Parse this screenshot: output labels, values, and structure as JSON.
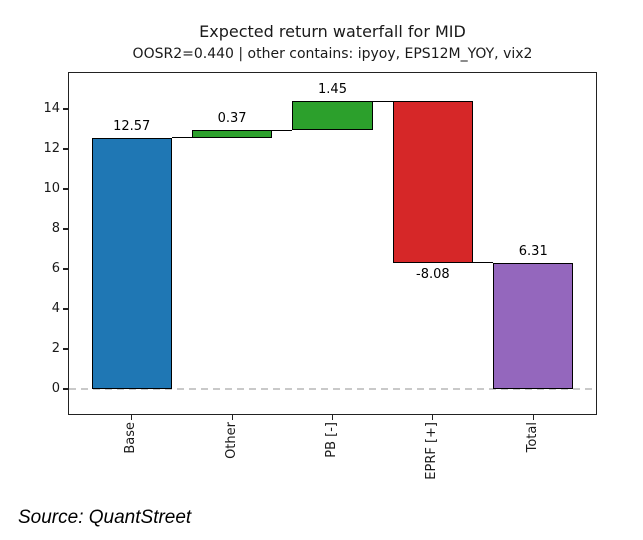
{
  "chart_data": {
    "type": "bar",
    "subtype": "waterfall",
    "title": "Expected return waterfall for MID",
    "subtitle": "OOSR2=0.440 | other contains: ipyoy, EPS12M_YOY, vix2",
    "categories": [
      "Base",
      "Other",
      "PB [-]",
      "EPRF [+]",
      "Total"
    ],
    "values": [
      12.57,
      0.37,
      1.45,
      -8.08,
      6.31
    ],
    "bar_labels": [
      "12.57",
      "0.37",
      "1.45",
      "-8.08",
      "6.31"
    ],
    "bar_colors": [
      "#1f77b4",
      "#2ca02c",
      "#2ca02c",
      "#d62728",
      "#9467bd"
    ],
    "bar_edge_color": "#000000",
    "connector_color": "#000000",
    "yticks": [
      0,
      2,
      4,
      6,
      8,
      10,
      12,
      14
    ],
    "ylim": [
      -1.25,
      15.8
    ],
    "zero_line": {
      "style": "dashed",
      "color": "#c9c9c9",
      "y": 0
    },
    "grid": false,
    "legend": false,
    "xlabel": "",
    "ylabel": "",
    "source": "Source: QuantStreet"
  }
}
